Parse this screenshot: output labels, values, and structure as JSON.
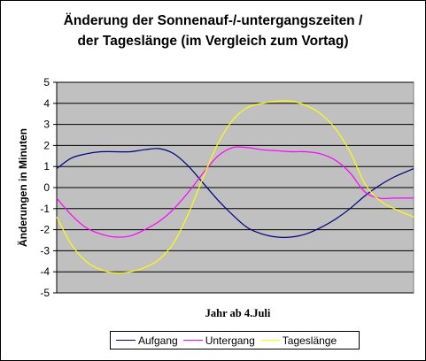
{
  "chart_data": {
    "type": "line",
    "title_lines": [
      "Änderung der Sonnenauf-/-untergangszeiten /",
      "der Tageslänge (im Vergleich zum Vortag)"
    ],
    "xlabel": "Jahr ab 4.Juli",
    "ylabel": "Änderungen in Minuten",
    "ylim": [
      -5,
      5
    ],
    "yticks": [
      "5",
      "4",
      "3",
      "2",
      "1",
      "0",
      "-1",
      "-2",
      "-3",
      "-4",
      "-5"
    ],
    "ytick_values": [
      5,
      4,
      3,
      2,
      1,
      0,
      -1,
      -2,
      -3,
      -4,
      -5
    ],
    "xlim": [
      0,
      365
    ],
    "grid": "horizontal",
    "legend_position": "bottom",
    "plot_background": "#c0c0c0",
    "series": [
      {
        "name": "Aufgang",
        "color": "#000080",
        "x": [
          0,
          15,
          30,
          45,
          60,
          75,
          90,
          105,
          120,
          135,
          150,
          165,
          180,
          195,
          210,
          225,
          240,
          255,
          270,
          285,
          300,
          315,
          330,
          345,
          365
        ],
        "values": [
          0.9,
          1.4,
          1.6,
          1.7,
          1.7,
          1.7,
          1.8,
          1.85,
          1.6,
          1.0,
          0.2,
          -0.6,
          -1.3,
          -1.9,
          -2.2,
          -2.35,
          -2.35,
          -2.2,
          -1.9,
          -1.5,
          -1.0,
          -0.4,
          0.1,
          0.5,
          0.9
        ]
      },
      {
        "name": "Untergang",
        "color": "#ff00ff",
        "x": [
          0,
          15,
          30,
          45,
          60,
          75,
          90,
          105,
          120,
          135,
          150,
          165,
          180,
          195,
          210,
          225,
          240,
          255,
          270,
          285,
          300,
          315,
          330,
          345,
          365
        ],
        "values": [
          -0.5,
          -1.3,
          -1.9,
          -2.2,
          -2.35,
          -2.3,
          -2.0,
          -1.6,
          -1.0,
          -0.2,
          0.7,
          1.5,
          1.9,
          1.9,
          1.8,
          1.75,
          1.7,
          1.7,
          1.6,
          1.3,
          0.7,
          -0.2,
          -0.5,
          -0.5,
          -0.5
        ]
      },
      {
        "name": "Tageslänge",
        "color": "#ffff00",
        "x": [
          0,
          15,
          30,
          45,
          60,
          75,
          90,
          105,
          120,
          135,
          150,
          165,
          180,
          195,
          210,
          225,
          240,
          255,
          270,
          285,
          300,
          315,
          330,
          345,
          365
        ],
        "values": [
          -1.4,
          -2.7,
          -3.5,
          -3.9,
          -4.05,
          -4.0,
          -3.8,
          -3.4,
          -2.6,
          -1.2,
          0.5,
          2.1,
          3.2,
          3.8,
          4.0,
          4.1,
          4.1,
          3.9,
          3.5,
          2.8,
          1.7,
          0.2,
          -0.6,
          -1.0,
          -1.4
        ]
      }
    ]
  }
}
